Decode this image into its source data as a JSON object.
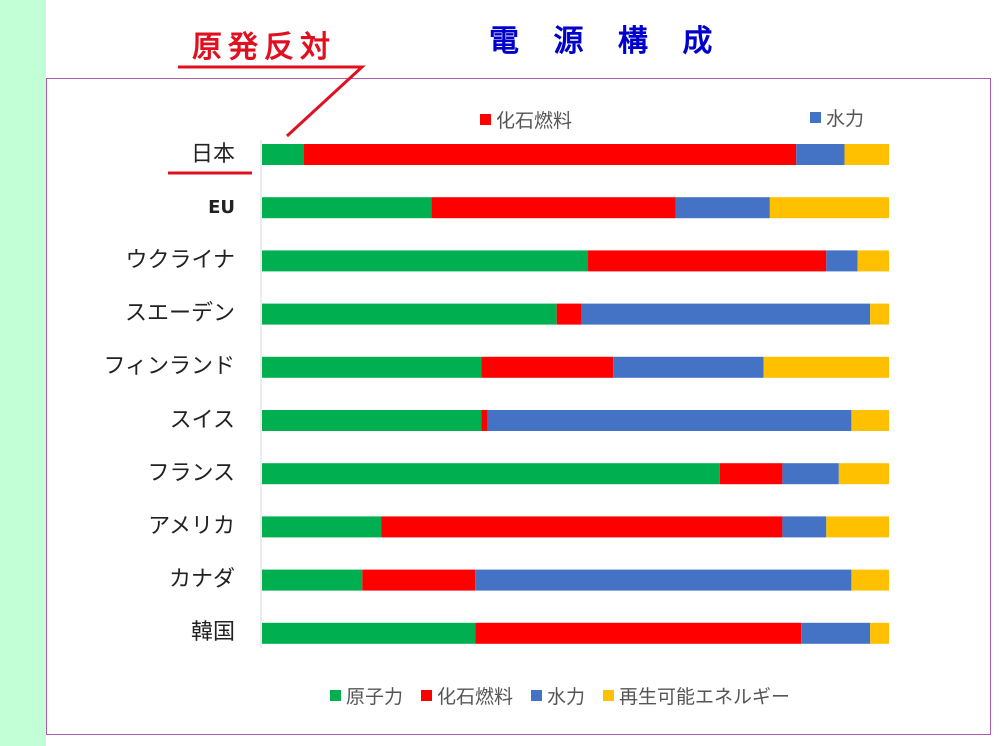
{
  "title": "電 源 構 成",
  "annotation": "原発反対",
  "top_legend": [
    {
      "label": "化石燃料",
      "color": "#ff0000"
    },
    {
      "label": "水力",
      "color": "#4472c4"
    }
  ],
  "chart_data": {
    "type": "bar",
    "orientation": "horizontal",
    "stacked": "percent",
    "categories": [
      "日本",
      "EU",
      "ウクライナ",
      "スエーデン",
      "フィンランド",
      "スイス",
      "フランス",
      "アメリカ",
      "カナダ",
      "韓国"
    ],
    "series": [
      {
        "name": "原子力",
        "color": "#00b050",
        "values": [
          6.7,
          27,
          52,
          47,
          35,
          35,
          73,
          19,
          16,
          34
        ]
      },
      {
        "name": "化石燃料",
        "color": "#ff0000",
        "values": [
          78.5,
          39,
          38,
          4,
          21,
          1,
          10,
          64,
          18,
          52
        ]
      },
      {
        "name": "水力",
        "color": "#4472c4",
        "values": [
          7.7,
          15,
          5,
          46,
          24,
          58,
          9,
          7,
          60,
          11
        ]
      },
      {
        "name": "再生可能エネルギー",
        "color": "#ffc000",
        "values": [
          7.1,
          19,
          5,
          3,
          20,
          6,
          8,
          10,
          6,
          3
        ]
      }
    ],
    "xlim": [
      0,
      100
    ]
  }
}
